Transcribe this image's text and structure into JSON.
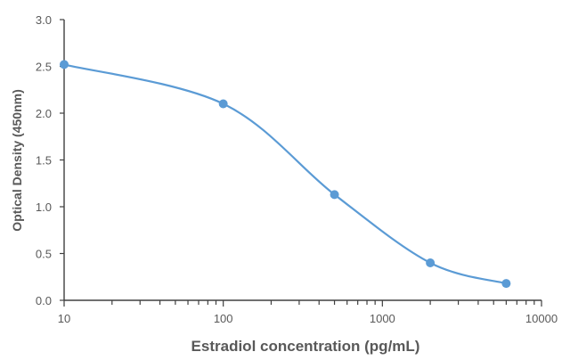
{
  "chart_data": {
    "type": "line",
    "title": "",
    "xlabel": "Estradiol concentration (pg/mL)",
    "ylabel": "Optical Density (450nm)",
    "x_scale": "log",
    "xlim": [
      10,
      10000
    ],
    "ylim": [
      0,
      3.0
    ],
    "x_tick_labels": [
      "10",
      "100",
      "1000",
      "10000"
    ],
    "y_tick_labels": [
      "0.0",
      "0.5",
      "1.0",
      "1.5",
      "2.0",
      "2.5",
      "3.0"
    ],
    "grid": false,
    "legend": "none",
    "series": [
      {
        "color": "#5b9bd5",
        "x": [
          10,
          100,
          500,
          2000,
          6000
        ],
        "y": [
          2.52,
          2.1,
          1.13,
          0.4,
          0.18
        ]
      }
    ]
  }
}
